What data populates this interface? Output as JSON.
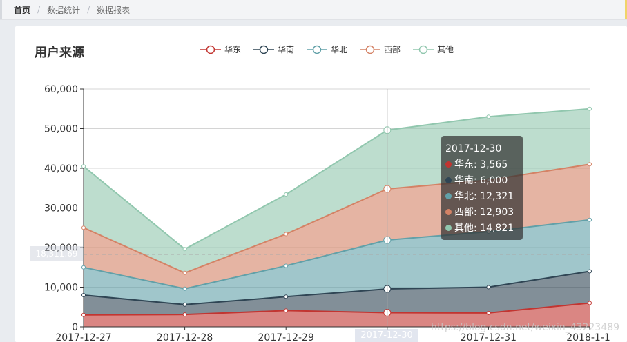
{
  "breadcrumb": {
    "home": "首页",
    "item1": "数据统计",
    "item2": "数据报表"
  },
  "card": {
    "title": "用户来源"
  },
  "tooltip": {
    "title": "2017-12-30",
    "rows": [
      "华东: 3,565",
      "华南: 6,000",
      "华北: 12,321",
      "西部: 12,903",
      "其他: 14,821"
    ]
  },
  "axis_pointer": {
    "y_label": "18,311.69",
    "x_label": "2017-12-30"
  },
  "watermark": "https://blog.csdn.net/weixin_43223489",
  "chart_data": {
    "type": "area",
    "stacked": true,
    "title": "用户来源",
    "categories": [
      "2017-12-27",
      "2017-12-28",
      "2017-12-29",
      "2017-12-30",
      "2017-12-31",
      "2018-1-1"
    ],
    "ylim": [
      0,
      60000
    ],
    "yticks": [
      0,
      10000,
      20000,
      30000,
      40000,
      50000,
      60000
    ],
    "ytick_labels": [
      "0",
      "10,000",
      "20,000",
      "30,000",
      "40,000",
      "50,000",
      "60,000"
    ],
    "grid": true,
    "legend_position": "top-center",
    "series": [
      {
        "name": "华东",
        "color": "#c23531",
        "values": [
          3000,
          3100,
          4100,
          3565,
          3500,
          6000
        ]
      },
      {
        "name": "华南",
        "color": "#2f4554",
        "values": [
          5000,
          2500,
          3500,
          6000,
          6500,
          8000
        ]
      },
      {
        "name": "华北",
        "color": "#61a0a8",
        "values": [
          7000,
          4000,
          7800,
          12321,
          14000,
          13000
        ]
      },
      {
        "name": "西部",
        "color": "#d48265",
        "values": [
          10000,
          4000,
          8000,
          12903,
          13000,
          14000
        ]
      },
      {
        "name": "其他",
        "color": "#91c7ae",
        "values": [
          15500,
          6000,
          10000,
          14821,
          16000,
          14000
        ]
      }
    ]
  }
}
